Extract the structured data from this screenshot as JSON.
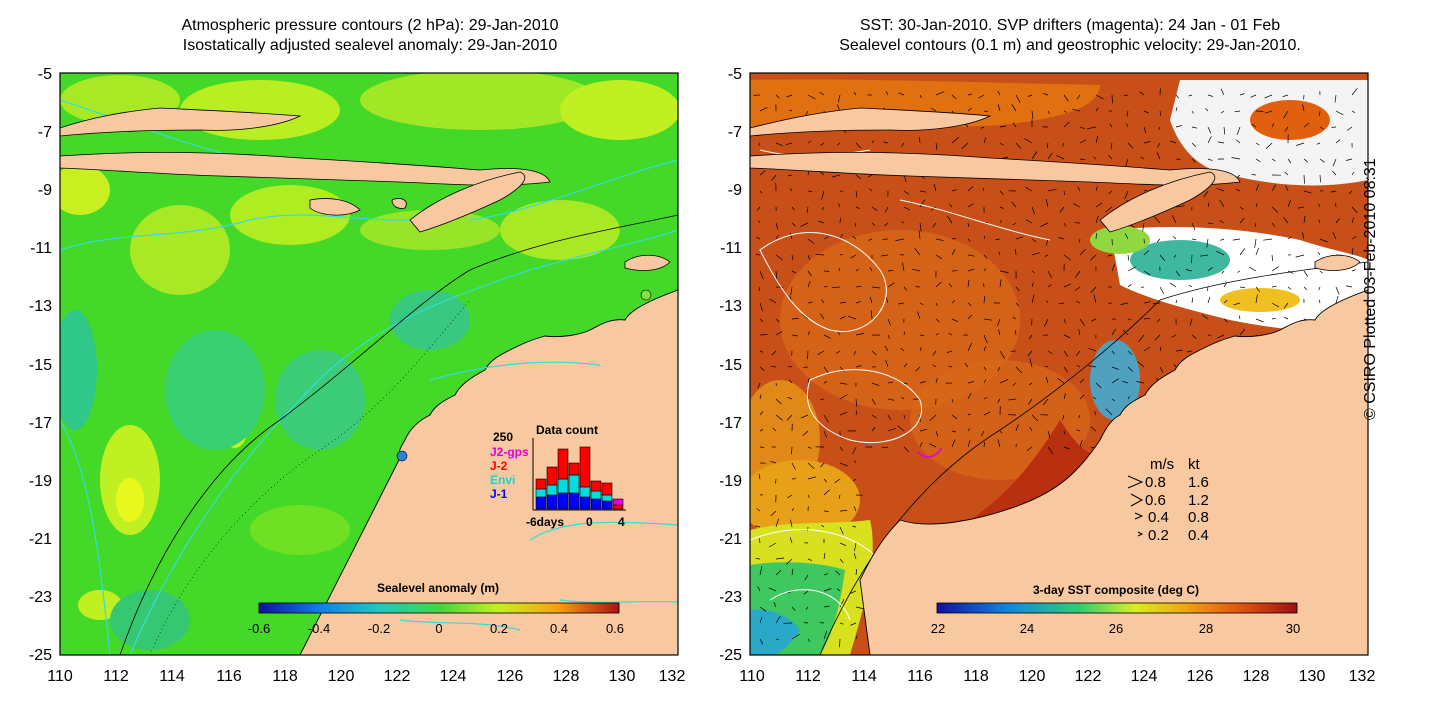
{
  "left_panel": {
    "title_line1": "Atmospheric pressure contours (2 hPa): 29-Jan-2010",
    "title_line2": "Isostatically adjusted sealevel anomaly: 29-Jan-2010",
    "colorbar_label": "Sealevel anomaly (m)",
    "colorbar_ticks": [
      "-0.6",
      "-0.4",
      "-0.2",
      "0",
      "0.2",
      "0.4",
      "0.6"
    ],
    "inset": {
      "title": "Data count",
      "y_max": "250",
      "legend": [
        {
          "label": "J2-gps",
          "color": "#e000e0"
        },
        {
          "label": "J-2",
          "color": "#ff0000"
        },
        {
          "label": "Envi",
          "color": "#00dddd"
        },
        {
          "label": "J-1",
          "color": "#0000ff"
        }
      ],
      "x_ticks": [
        "-6days",
        "0",
        "4"
      ]
    }
  },
  "right_panel": {
    "title_line1": "SST: 30-Jan-2010. SVP drifters (magenta): 24 Jan - 01 Feb",
    "title_line2": "Sealevel contours (0.1 m) and geostrophic velocity: 29-Jan-2010.",
    "colorbar_label": "3-day SST composite (deg C)",
    "colorbar_ticks": [
      "22",
      "24",
      "26",
      "28",
      "30"
    ],
    "velocity_legend": {
      "header_ms": "m/s",
      "header_kt": "kt",
      "rows": [
        {
          "ms": "0.8",
          "kt": "1.6"
        },
        {
          "ms": "0.6",
          "kt": "1.2"
        },
        {
          "ms": "0.4",
          "kt": "0.8"
        },
        {
          "ms": "0.2",
          "kt": "0.4"
        }
      ]
    }
  },
  "axes": {
    "y_ticks": [
      "-5",
      "-7",
      "-9",
      "-11",
      "-13",
      "-15",
      "-17",
      "-19",
      "-21",
      "-23",
      "-25"
    ],
    "x_ticks": [
      "110",
      "112",
      "114",
      "116",
      "118",
      "120",
      "122",
      "124",
      "126",
      "128",
      "130",
      "132"
    ]
  },
  "credit": "© CSIRO Plotted 03-Feb-2010 08:31",
  "colors": {
    "land": "#f8c8a0",
    "sla_green": "#44dd22",
    "sla_lime": "#aaee22",
    "sst_dark": "#c04410",
    "sst_mid": "#e07818",
    "contour_cyan": "#33dddd"
  }
}
